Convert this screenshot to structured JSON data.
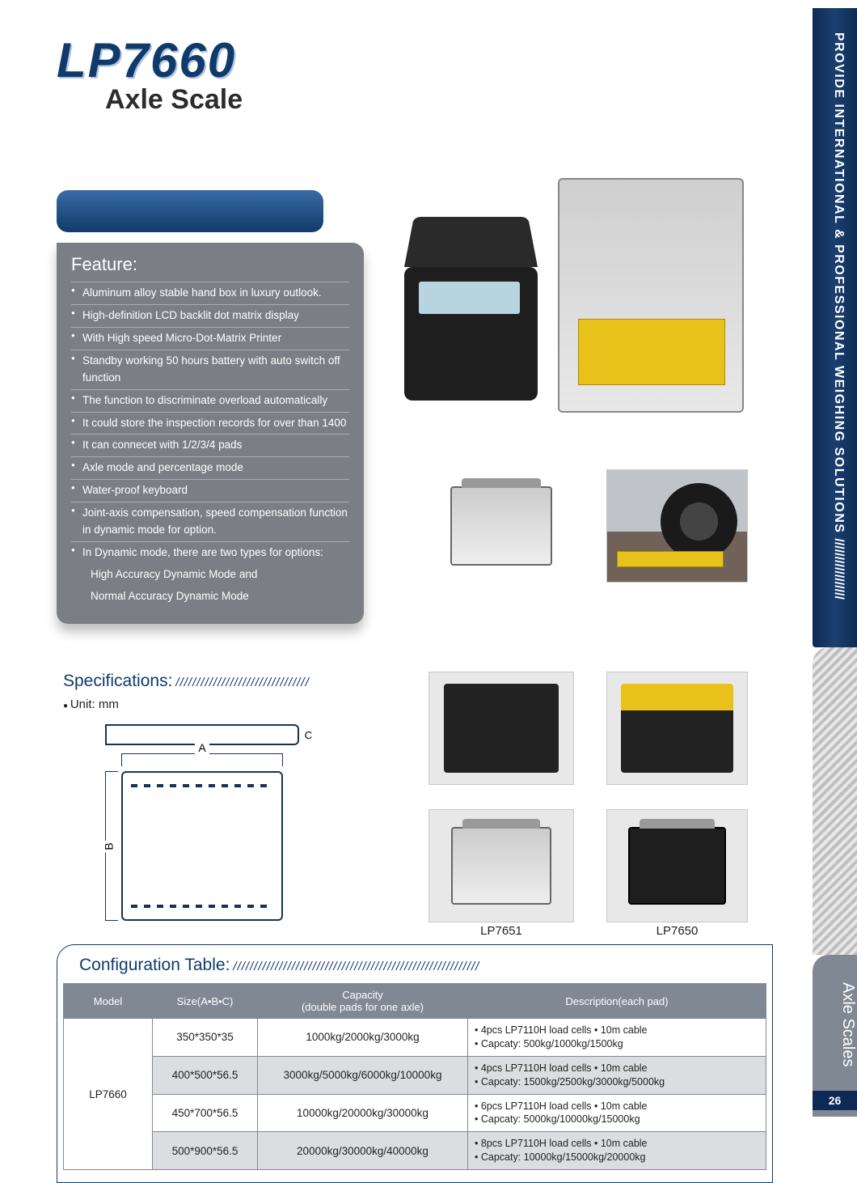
{
  "header": {
    "model": "LP7660",
    "subtitle": "Axle Scale"
  },
  "sidebar": {
    "top_text": "PROVIDE INTERNATIONAL & PROFESSIONAL WEIGHING SOLUTIONS",
    "category": "Axle Scales",
    "page_num": "26"
  },
  "feature": {
    "title": "Feature:",
    "items": [
      "Aluminum alloy stable hand box in luxury outlook.",
      "High-definition LCD backlit dot matrix display",
      "With High speed Micro-Dot-Matrix Printer",
      "Standby working 50 hours battery with auto switch off function",
      "The function to discriminate overload automatically",
      "It could store the inspection records for over than 1400",
      "It can connecet with 1/2/3/4 pads",
      "Axle mode and percentage mode",
      "Water-proof keyboard",
      "Joint-axis compensation, speed compensation function in dynamic mode for option.",
      "In Dynamic mode, there are two types for options:"
    ],
    "sub_items": [
      "High Accuracy Dynamic Mode and",
      "Normal Accuracy Dynamic Mode"
    ]
  },
  "spec": {
    "title": "Specifications:",
    "unit": "Unit: mm",
    "dim_a": "A",
    "dim_b": "B",
    "img_label_1": "LP7651",
    "img_label_2": "LP7650"
  },
  "config": {
    "title": "Configuration Table:",
    "columns": [
      "Model",
      "Size(A•B•C)",
      "Capacity\n(double pads for one axle)",
      "Description(each pad)"
    ],
    "model": "LP7660",
    "rows": [
      {
        "size": "350*350*35",
        "capacity": "1000kg/2000kg/3000kg",
        "desc": "• 4pcs LP7110H load cells  • 10m cable\n• Capcaty: 500kg/1000kg/1500kg"
      },
      {
        "size": "400*500*56.5",
        "capacity": "3000kg/5000kg/6000kg/10000kg",
        "desc": "• 4pcs LP7110H load cells  • 10m cable\n• Capcaty: 1500kg/2500kg/3000kg/5000kg"
      },
      {
        "size": "450*700*56.5",
        "capacity": "10000kg/20000kg/30000kg",
        "desc": "• 6pcs LP7110H load cells  • 10m cable\n• Capcaty: 5000kg/10000kg/15000kg"
      },
      {
        "size": "500*900*56.5",
        "capacity": "20000kg/30000kg/40000kg",
        "desc": "• 8pcs LP7110H load cells  • 10m cable\n• Capcaty: 10000kg/15000kg/20000kg"
      }
    ]
  },
  "colors": {
    "brand_blue": "#0f3a6b",
    "panel_gray": "#7b7f85",
    "sidebar_gray": "#808894",
    "alt_row": "#dcdde0"
  }
}
